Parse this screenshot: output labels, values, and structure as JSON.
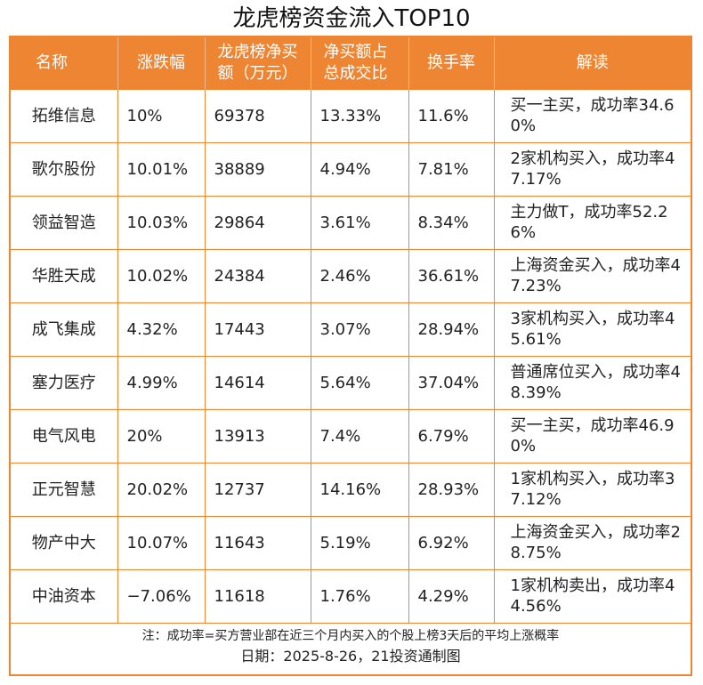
{
  "title": "龙虎榜资金流入TOP10",
  "accent_color": "#EE8533",
  "columns": [
    "名称",
    "涨跌幅",
    "龙虎榜净买额（万元）",
    "净买额占总成交比",
    "换手率",
    "解读"
  ],
  "rows": [
    {
      "name": "拓维信息",
      "change": "10%",
      "net_buy": "69378",
      "ratio": "13.33%",
      "turnover": "11.6%",
      "interp": "买一主买，成功率34.60%"
    },
    {
      "name": "歌尔股份",
      "change": "10.01%",
      "net_buy": "38889",
      "ratio": "4.94%",
      "turnover": "7.81%",
      "interp": "2家机构买入，成功率47.17%"
    },
    {
      "name": "领益智造",
      "change": "10.03%",
      "net_buy": "29864",
      "ratio": "3.61%",
      "turnover": "8.34%",
      "interp": "主力做T，成功率52.26%"
    },
    {
      "name": "华胜天成",
      "change": "10.02%",
      "net_buy": "24384",
      "ratio": "2.46%",
      "turnover": "36.61%",
      "interp": "上海资金买入，成功率47.23%"
    },
    {
      "name": "成飞集成",
      "change": "4.32%",
      "net_buy": "17443",
      "ratio": "3.07%",
      "turnover": "28.94%",
      "interp": "3家机构买入，成功率45.61%"
    },
    {
      "name": "塞力医疗",
      "change": "4.99%",
      "net_buy": "14614",
      "ratio": "5.64%",
      "turnover": "37.04%",
      "interp": "普通席位买入，成功率48.39%"
    },
    {
      "name": "电气风电",
      "change": "20%",
      "net_buy": "13913",
      "ratio": "7.4%",
      "turnover": "6.79%",
      "interp": "买一主买，成功率46.90%"
    },
    {
      "name": "正元智慧",
      "change": "20.02%",
      "net_buy": "12737",
      "ratio": "14.16%",
      "turnover": "28.93%",
      "interp": "1家机构买入，成功率37.12%"
    },
    {
      "name": "物产中大",
      "change": "10.07%",
      "net_buy": "11643",
      "ratio": "5.19%",
      "turnover": "6.92%",
      "interp": "上海资金买入，成功率28.75%"
    },
    {
      "name": "中油资本",
      "change": "−7.06%",
      "net_buy": "11618",
      "ratio": "1.76%",
      "turnover": "4.29%",
      "interp": "1家机构卖出，成功率44.56%"
    }
  ],
  "footer": {
    "note": "注：成功率=买方营业部在近三个月内买入的个股上榜3天后的平均上涨概率",
    "date": "日期：2025-8-26，21投资通制图"
  }
}
